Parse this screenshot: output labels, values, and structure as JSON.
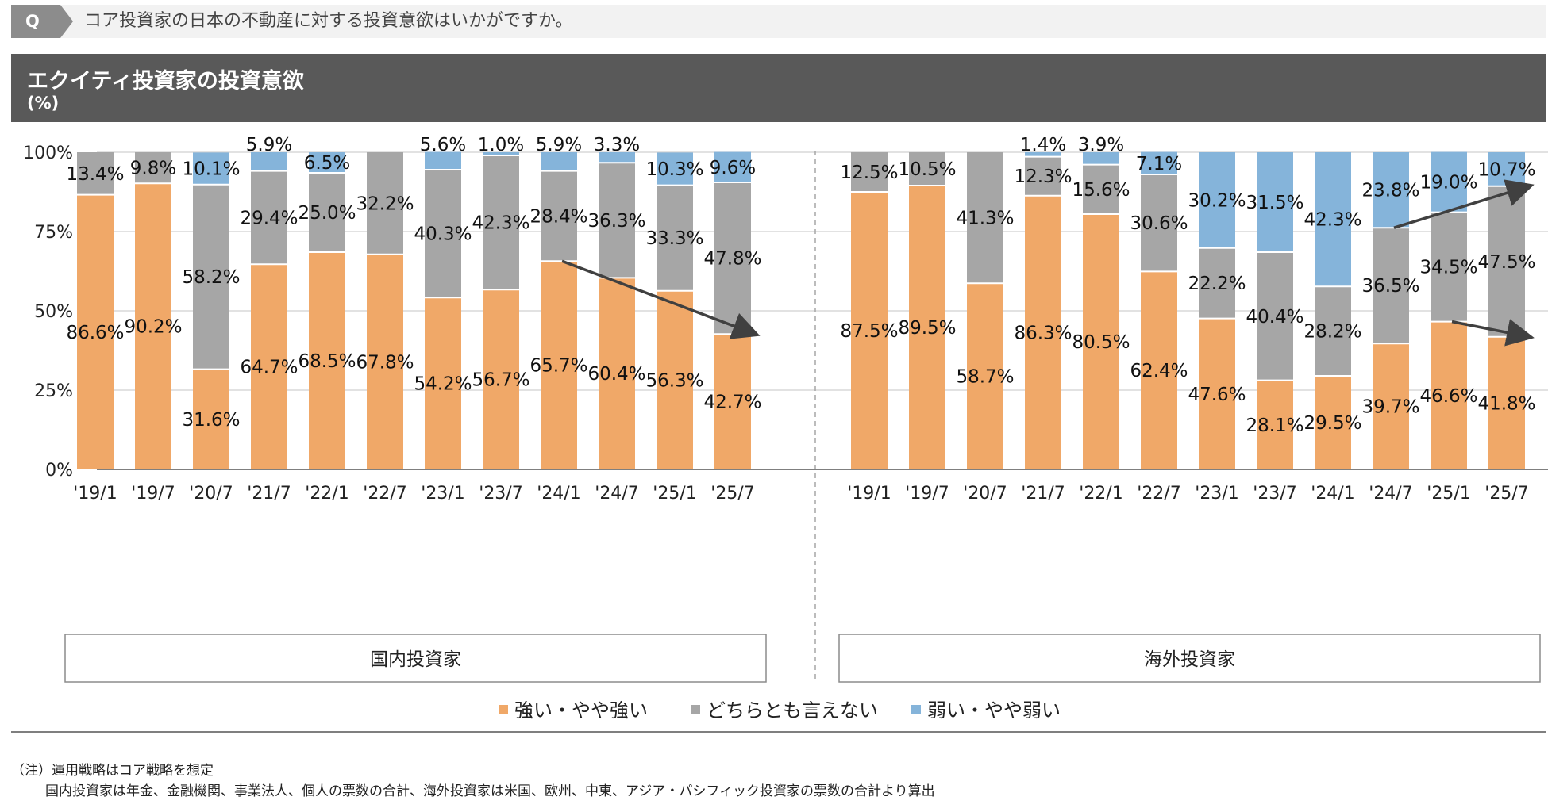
{
  "question": {
    "badge": "Q",
    "text": "コア投資家の日本の不動産に対する投資意欲はいかがですか。"
  },
  "header": {
    "title": "エクイティ投資家の投資意欲",
    "unit": "(%)"
  },
  "colors": {
    "strong": "#f0a868",
    "neutral": "#a6a6a6",
    "weak": "#85b4da"
  },
  "chart_data": {
    "type": "bar",
    "stacked": true,
    "ylim": [
      0,
      100
    ],
    "yticks": [
      "0%",
      "25%",
      "50%",
      "75%",
      "100%"
    ],
    "grid": true,
    "legend_position": "bottom",
    "series_names": [
      "強い・やや強い",
      "どちらとも言えない",
      "弱い・やや弱い"
    ],
    "groups": [
      {
        "name": "国内投資家",
        "categories": [
          "'19/1",
          "'19/7",
          "'20/7",
          "'21/7",
          "'22/1",
          "'22/7",
          "'23/1",
          "'23/7",
          "'24/1",
          "'24/7",
          "'25/1",
          "'25/7"
        ],
        "strong": [
          86.6,
          90.2,
          31.6,
          64.7,
          68.5,
          67.8,
          54.2,
          56.7,
          65.7,
          60.4,
          56.3,
          42.7
        ],
        "neutral": [
          13.4,
          9.8,
          58.2,
          29.4,
          25.0,
          32.2,
          40.3,
          42.3,
          28.4,
          36.3,
          33.3,
          47.8
        ],
        "weak": [
          null,
          null,
          10.1,
          5.9,
          6.5,
          null,
          5.6,
          1.0,
          5.9,
          3.3,
          10.3,
          9.6
        ]
      },
      {
        "name": "海外投資家",
        "categories": [
          "'19/1",
          "'19/7",
          "'20/7",
          "'21/7",
          "'22/1",
          "'22/7",
          "'23/1",
          "'23/7",
          "'24/1",
          "'24/7",
          "'25/1",
          "'25/7"
        ],
        "strong": [
          87.5,
          89.5,
          58.7,
          86.3,
          80.5,
          62.4,
          47.6,
          28.1,
          29.5,
          39.7,
          46.6,
          41.8
        ],
        "neutral": [
          12.5,
          10.5,
          41.3,
          12.3,
          15.6,
          30.6,
          22.2,
          40.4,
          28.2,
          36.5,
          34.5,
          47.5
        ],
        "weak": [
          null,
          null,
          null,
          1.4,
          3.9,
          7.1,
          30.2,
          31.5,
          42.3,
          23.8,
          19.0,
          10.7
        ]
      }
    ]
  },
  "notes": [
    "（注）運用戦略はコア戦略を想定",
    "国内投資家は年金、金融機関、事業法人、個人の票数の合計、海外投資家は米国、欧州、中東、アジア・パシフィック投資家の票数の合計より算出"
  ]
}
